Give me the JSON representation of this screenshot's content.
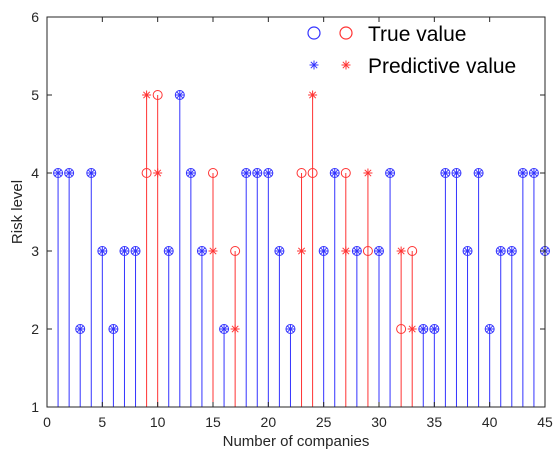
{
  "chart_data": {
    "type": "scatter",
    "title": "",
    "xlabel": "Number of companies",
    "ylabel": "Risk level",
    "xlim": [
      0,
      45
    ],
    "ylim": [
      1,
      6
    ],
    "xticks": [
      0,
      5,
      10,
      15,
      20,
      25,
      30,
      35,
      40,
      45
    ],
    "yticks": [
      1,
      2,
      3,
      4,
      5,
      6
    ],
    "x_tick_labels": [
      "0",
      "5",
      "10",
      "15",
      "20",
      "25",
      "30",
      "35",
      "40",
      "45"
    ],
    "y_tick_labels": [
      "1",
      "2",
      "3",
      "4",
      "5",
      "6"
    ],
    "grid": false,
    "legend_position": "top-right",
    "legend": {
      "true_label": "True value",
      "pred_label": "Predictive value"
    },
    "colors": {
      "correct": "#3333ff",
      "incorrect": "#ff3333",
      "axis": "#262626"
    },
    "x": [
      1,
      2,
      3,
      4,
      5,
      6,
      7,
      8,
      9,
      10,
      11,
      12,
      13,
      14,
      15,
      16,
      17,
      18,
      19,
      20,
      21,
      22,
      23,
      24,
      25,
      26,
      27,
      28,
      29,
      30,
      31,
      32,
      33,
      34,
      35,
      36,
      37,
      38,
      39,
      40,
      41,
      42,
      43,
      44,
      45
    ],
    "series": [
      {
        "name": "True value",
        "values": [
          4,
          4,
          2,
          4,
          3,
          2,
          3,
          3,
          4,
          5,
          3,
          5,
          4,
          3,
          4,
          2,
          3,
          4,
          4,
          4,
          3,
          2,
          4,
          4,
          3,
          4,
          4,
          3,
          3,
          3,
          4,
          2,
          3,
          2,
          2,
          4,
          4,
          3,
          4,
          2,
          3,
          3,
          4,
          4,
          3
        ]
      },
      {
        "name": "Predictive value",
        "values": [
          4,
          4,
          2,
          4,
          3,
          2,
          3,
          3,
          5,
          4,
          3,
          5,
          4,
          3,
          3,
          2,
          2,
          4,
          4,
          4,
          3,
          2,
          3,
          5,
          3,
          4,
          3,
          3,
          4,
          3,
          4,
          3,
          2,
          2,
          2,
          4,
          4,
          3,
          4,
          2,
          3,
          3,
          4,
          4,
          3
        ]
      }
    ]
  }
}
